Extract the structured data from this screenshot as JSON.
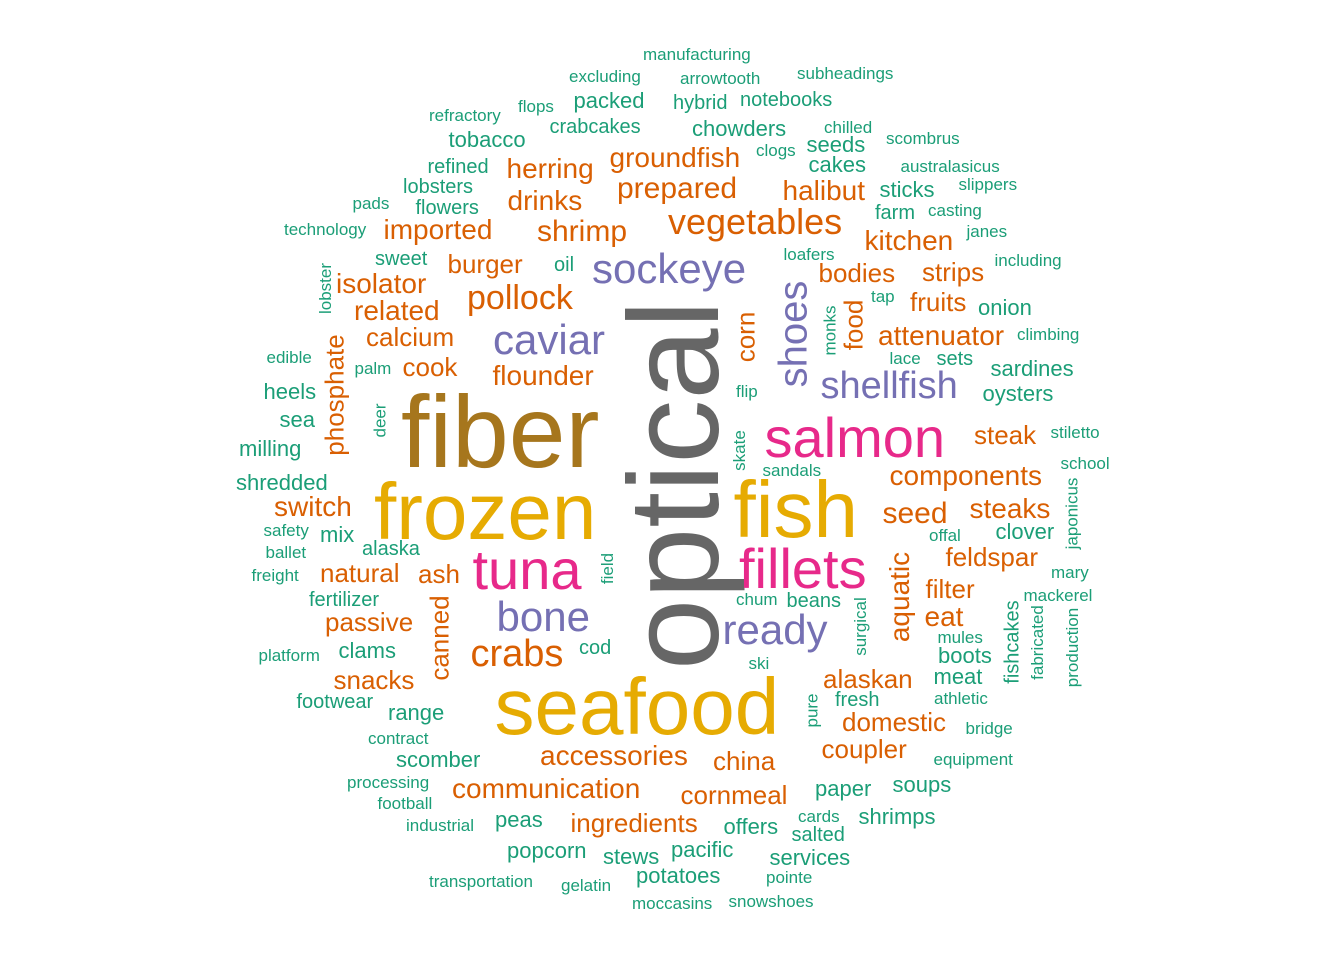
{
  "palette": {
    "teal": "#1b9e77",
    "orange": "#d95f02",
    "purple": "#7570b3",
    "pink": "#e7298a",
    "gold": "#e6ab02",
    "bronze": "#a6761d",
    "gray": "#666666"
  },
  "words": [
    {
      "text": "optical",
      "color": "gray",
      "vertical": true
    },
    {
      "text": "fiber",
      "color": "bronze"
    },
    {
      "text": "seafood",
      "color": "gold"
    },
    {
      "text": "frozen",
      "color": "gold"
    },
    {
      "text": "fish",
      "color": "gold"
    },
    {
      "text": "salmon",
      "color": "pink"
    },
    {
      "text": "fillets",
      "color": "pink"
    },
    {
      "text": "tuna",
      "color": "pink"
    },
    {
      "text": "sockeye",
      "color": "purple"
    },
    {
      "text": "caviar",
      "color": "purple"
    },
    {
      "text": "shoes",
      "color": "purple",
      "vertical": true
    },
    {
      "text": "shellfish",
      "color": "purple"
    },
    {
      "text": "bone",
      "color": "purple"
    },
    {
      "text": "ready",
      "color": "purple"
    },
    {
      "text": "vegetables",
      "color": "orange"
    },
    {
      "text": "pollock",
      "color": "orange"
    },
    {
      "text": "crabs",
      "color": "orange"
    },
    {
      "text": "accessories",
      "color": "orange"
    },
    {
      "text": "communication",
      "color": "orange"
    },
    {
      "text": "prepared",
      "color": "orange"
    },
    {
      "text": "groundfish",
      "color": "orange"
    },
    {
      "text": "herring",
      "color": "orange"
    },
    {
      "text": "drinks",
      "color": "orange"
    },
    {
      "text": "shrimp",
      "color": "orange"
    },
    {
      "text": "imported",
      "color": "orange"
    },
    {
      "text": "halibut",
      "color": "orange"
    },
    {
      "text": "kitchen",
      "color": "orange"
    },
    {
      "text": "burger",
      "color": "orange"
    },
    {
      "text": "isolator",
      "color": "orange"
    },
    {
      "text": "related",
      "color": "orange"
    },
    {
      "text": "calcium",
      "color": "orange"
    },
    {
      "text": "cook",
      "color": "orange"
    },
    {
      "text": "flounder",
      "color": "orange"
    },
    {
      "text": "bodies",
      "color": "orange"
    },
    {
      "text": "strips",
      "color": "orange"
    },
    {
      "text": "fruits",
      "color": "orange"
    },
    {
      "text": "attenuator",
      "color": "orange"
    },
    {
      "text": "corn",
      "color": "orange",
      "vertical": true
    },
    {
      "text": "food",
      "color": "orange",
      "vertical": true
    },
    {
      "text": "steak",
      "color": "orange"
    },
    {
      "text": "components",
      "color": "orange"
    },
    {
      "text": "switch",
      "color": "orange"
    },
    {
      "text": "seed",
      "color": "orange"
    },
    {
      "text": "steaks",
      "color": "orange"
    },
    {
      "text": "feldspar",
      "color": "orange"
    },
    {
      "text": "natural",
      "color": "orange"
    },
    {
      "text": "ash",
      "color": "orange"
    },
    {
      "text": "filter",
      "color": "orange"
    },
    {
      "text": "eat",
      "color": "orange"
    },
    {
      "text": "aquatic",
      "color": "orange",
      "vertical": true
    },
    {
      "text": "passive",
      "color": "orange"
    },
    {
      "text": "canned",
      "color": "orange",
      "vertical": true
    },
    {
      "text": "phosphate",
      "color": "orange",
      "vertical": true
    },
    {
      "text": "snacks",
      "color": "orange"
    },
    {
      "text": "alaskan",
      "color": "orange"
    },
    {
      "text": "domestic",
      "color": "orange"
    },
    {
      "text": "coupler",
      "color": "orange"
    },
    {
      "text": "china",
      "color": "orange"
    },
    {
      "text": "cornmeal",
      "color": "orange"
    },
    {
      "text": "ingredients",
      "color": "orange"
    },
    {
      "text": "manufacturing",
      "color": "teal"
    },
    {
      "text": "excluding",
      "color": "teal"
    },
    {
      "text": "arrowtooth",
      "color": "teal"
    },
    {
      "text": "subheadings",
      "color": "teal"
    },
    {
      "text": "refractory",
      "color": "teal"
    },
    {
      "text": "flops",
      "color": "teal"
    },
    {
      "text": "packed",
      "color": "teal"
    },
    {
      "text": "hybrid",
      "color": "teal"
    },
    {
      "text": "notebooks",
      "color": "teal"
    },
    {
      "text": "tobacco",
      "color": "teal"
    },
    {
      "text": "crabcakes",
      "color": "teal"
    },
    {
      "text": "chowders",
      "color": "teal"
    },
    {
      "text": "chilled",
      "color": "teal"
    },
    {
      "text": "scombrus",
      "color": "teal"
    },
    {
      "text": "refined",
      "color": "teal"
    },
    {
      "text": "clogs",
      "color": "teal"
    },
    {
      "text": "seeds",
      "color": "teal"
    },
    {
      "text": "cakes",
      "color": "teal"
    },
    {
      "text": "australasicus",
      "color": "teal"
    },
    {
      "text": "lobsters",
      "color": "teal"
    },
    {
      "text": "sticks",
      "color": "teal"
    },
    {
      "text": "slippers",
      "color": "teal"
    },
    {
      "text": "pads",
      "color": "teal"
    },
    {
      "text": "flowers",
      "color": "teal"
    },
    {
      "text": "farm",
      "color": "teal"
    },
    {
      "text": "casting",
      "color": "teal"
    },
    {
      "text": "technology",
      "color": "teal"
    },
    {
      "text": "janes",
      "color": "teal"
    },
    {
      "text": "sweet",
      "color": "teal"
    },
    {
      "text": "oil",
      "color": "teal"
    },
    {
      "text": "loafers",
      "color": "teal"
    },
    {
      "text": "including",
      "color": "teal"
    },
    {
      "text": "lobster",
      "color": "teal",
      "vertical": true
    },
    {
      "text": "tap",
      "color": "teal"
    },
    {
      "text": "onion",
      "color": "teal"
    },
    {
      "text": "monks",
      "color": "teal",
      "vertical": true
    },
    {
      "text": "climbing",
      "color": "teal"
    },
    {
      "text": "edible",
      "color": "teal"
    },
    {
      "text": "palm",
      "color": "teal"
    },
    {
      "text": "lace",
      "color": "teal"
    },
    {
      "text": "sets",
      "color": "teal"
    },
    {
      "text": "sardines",
      "color": "teal"
    },
    {
      "text": "heels",
      "color": "teal"
    },
    {
      "text": "flip",
      "color": "teal"
    },
    {
      "text": "oysters",
      "color": "teal"
    },
    {
      "text": "sea",
      "color": "teal"
    },
    {
      "text": "deer",
      "color": "teal",
      "vertical": true
    },
    {
      "text": "stiletto",
      "color": "teal"
    },
    {
      "text": "milling",
      "color": "teal"
    },
    {
      "text": "skate",
      "color": "teal",
      "vertical": true
    },
    {
      "text": "school",
      "color": "teal"
    },
    {
      "text": "sandals",
      "color": "teal"
    },
    {
      "text": "shredded",
      "color": "teal"
    },
    {
      "text": "japonicus",
      "color": "teal",
      "vertical": true
    },
    {
      "text": "safety",
      "color": "teal"
    },
    {
      "text": "mix",
      "color": "teal"
    },
    {
      "text": "offal",
      "color": "teal"
    },
    {
      "text": "clover",
      "color": "teal"
    },
    {
      "text": "ballet",
      "color": "teal"
    },
    {
      "text": "alaska",
      "color": "teal"
    },
    {
      "text": "field",
      "color": "teal",
      "vertical": true
    },
    {
      "text": "freight",
      "color": "teal"
    },
    {
      "text": "mary",
      "color": "teal"
    },
    {
      "text": "fertilizer",
      "color": "teal"
    },
    {
      "text": "chum",
      "color": "teal"
    },
    {
      "text": "beans",
      "color": "teal"
    },
    {
      "text": "mackerel",
      "color": "teal"
    },
    {
      "text": "surgical",
      "color": "teal",
      "vertical": true
    },
    {
      "text": "fabricated",
      "color": "teal",
      "vertical": true
    },
    {
      "text": "production",
      "color": "teal",
      "vertical": true
    },
    {
      "text": "fishcakes",
      "color": "teal",
      "vertical": true
    },
    {
      "text": "mules",
      "color": "teal"
    },
    {
      "text": "clams",
      "color": "teal"
    },
    {
      "text": "cod",
      "color": "teal"
    },
    {
      "text": "boots",
      "color": "teal"
    },
    {
      "text": "platform",
      "color": "teal"
    },
    {
      "text": "ski",
      "color": "teal"
    },
    {
      "text": "meat",
      "color": "teal"
    },
    {
      "text": "footwear",
      "color": "teal"
    },
    {
      "text": "fresh",
      "color": "teal"
    },
    {
      "text": "athletic",
      "color": "teal"
    },
    {
      "text": "range",
      "color": "teal"
    },
    {
      "text": "pure",
      "color": "teal",
      "vertical": true
    },
    {
      "text": "contract",
      "color": "teal"
    },
    {
      "text": "bridge",
      "color": "teal"
    },
    {
      "text": "scomber",
      "color": "teal"
    },
    {
      "text": "equipment",
      "color": "teal"
    },
    {
      "text": "processing",
      "color": "teal"
    },
    {
      "text": "paper",
      "color": "teal"
    },
    {
      "text": "soups",
      "color": "teal"
    },
    {
      "text": "football",
      "color": "teal"
    },
    {
      "text": "industrial",
      "color": "teal"
    },
    {
      "text": "peas",
      "color": "teal"
    },
    {
      "text": "offers",
      "color": "teal"
    },
    {
      "text": "cards",
      "color": "teal"
    },
    {
      "text": "shrimps",
      "color": "teal"
    },
    {
      "text": "salted",
      "color": "teal"
    },
    {
      "text": "popcorn",
      "color": "teal"
    },
    {
      "text": "stews",
      "color": "teal"
    },
    {
      "text": "pacific",
      "color": "teal"
    },
    {
      "text": "services",
      "color": "teal"
    },
    {
      "text": "transportation",
      "color": "teal"
    },
    {
      "text": "gelatin",
      "color": "teal"
    },
    {
      "text": "potatoes",
      "color": "teal"
    },
    {
      "text": "pointe",
      "color": "teal"
    },
    {
      "text": "moccasins",
      "color": "teal"
    },
    {
      "text": "snowshoes",
      "color": "teal"
    }
  ]
}
